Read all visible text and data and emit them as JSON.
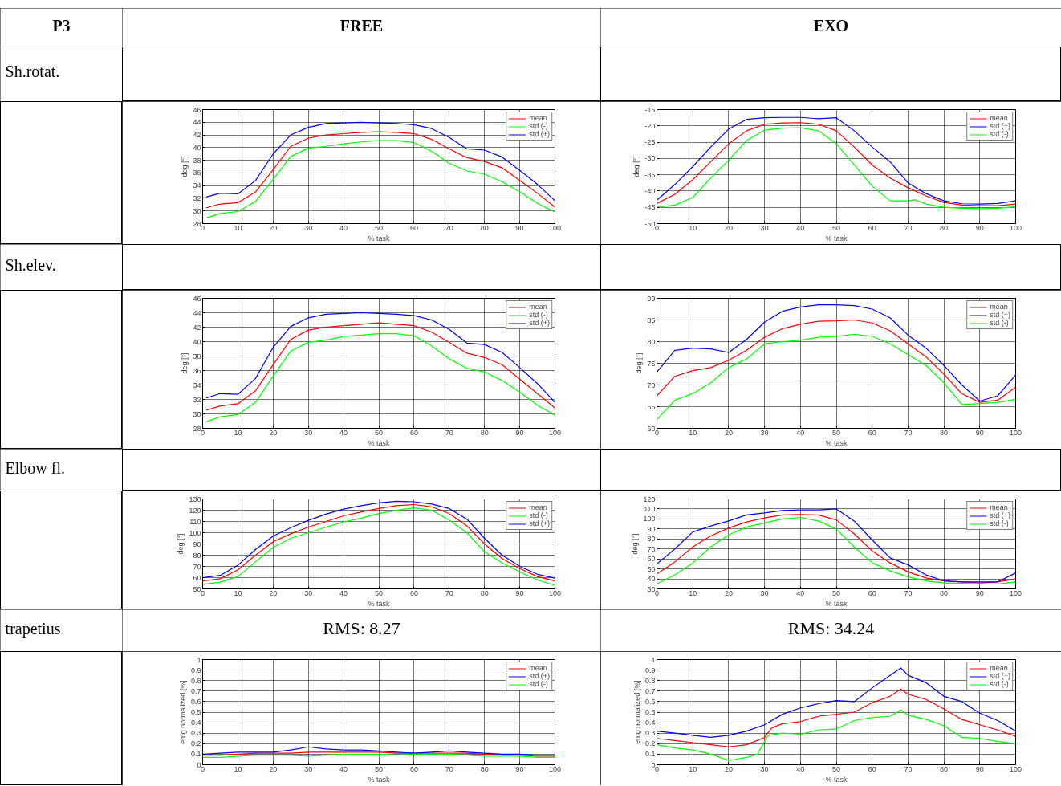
{
  "chart_data": [
    {
      "type": "other",
      "annotations": [
        "P3",
        "FREE",
        "EXO",
        "Sh.rotat.",
        "Sh.elev.",
        "Elbow fl.",
        "trapetius"
      ]
    },
    {
      "type": "line",
      "xlabel": "% task",
      "ylabel": "deg [°]",
      "xlim": [
        0,
        100
      ],
      "xticks": [
        0,
        10,
        20,
        30,
        40,
        50,
        60,
        70,
        80,
        90,
        100
      ],
      "ylim": [
        28,
        46
      ],
      "yticks": [
        28,
        30,
        32,
        34,
        36,
        38,
        40,
        42,
        44,
        46
      ],
      "grid": true,
      "legend": "top right",
      "series": [
        {
          "name": "mean",
          "color": "#ff0000",
          "x": [
            1,
            5,
            10,
            15,
            20,
            25,
            30,
            35,
            40,
            45,
            50,
            55,
            60,
            65,
            70,
            75,
            80,
            85,
            90,
            95,
            100
          ],
          "values": [
            30.5,
            31.1,
            31.3,
            33,
            36.5,
            40.2,
            41.5,
            42,
            42.2,
            42.4,
            42.5,
            42.4,
            42.2,
            41.3,
            39.8,
            38.4,
            37.8,
            36.8,
            34.8,
            32.8,
            30.6
          ]
        },
        {
          "name": "std (-)",
          "color": "#00ff00",
          "x": [
            1,
            5,
            10,
            15,
            20,
            25,
            30,
            35,
            40,
            45,
            50,
            55,
            60,
            65,
            70,
            75,
            80,
            85,
            90,
            95,
            100
          ],
          "values": [
            28.9,
            29.6,
            29.9,
            31.5,
            35,
            38.6,
            39.9,
            40.2,
            40.6,
            40.9,
            41.1,
            41.1,
            40.8,
            39.4,
            37.5,
            36.3,
            35.8,
            34.6,
            33,
            31.2,
            29.8
          ]
        },
        {
          "name": "std (+)",
          "color": "#0000ff",
          "x": [
            1,
            5,
            10,
            15,
            20,
            25,
            30,
            35,
            40,
            45,
            50,
            55,
            60,
            65,
            70,
            75,
            80,
            85,
            90,
            95,
            100
          ],
          "values": [
            32.2,
            32.8,
            32.7,
            34.8,
            39,
            42,
            43.2,
            43.8,
            43.9,
            44,
            43.9,
            43.8,
            43.6,
            43,
            41.6,
            39.8,
            39.6,
            38.5,
            36.4,
            34.2,
            31.6
          ]
        }
      ]
    },
    {
      "type": "line",
      "xlabel": "% task",
      "ylabel": "deg [°]",
      "xlim": [
        0,
        100
      ],
      "xticks": [
        0,
        10,
        20,
        30,
        40,
        50,
        60,
        70,
        80,
        90,
        100
      ],
      "ylim": [
        -50,
        -15
      ],
      "yticks": [
        -50,
        -45,
        -40,
        -35,
        -30,
        -25,
        -20,
        -15
      ],
      "grid": true,
      "legend": "top right",
      "series": [
        {
          "name": "mean",
          "color": "#ff0000",
          "x": [
            0,
            5,
            10,
            15,
            20,
            25,
            30,
            35,
            40,
            45,
            50,
            55,
            60,
            65,
            70,
            75,
            80,
            85,
            90,
            95,
            100
          ],
          "values": [
            -43.8,
            -41,
            -36.5,
            -31,
            -25.5,
            -21.5,
            -19.5,
            -19.1,
            -19,
            -19.5,
            -21.5,
            -26.5,
            -32,
            -36,
            -39,
            -41.5,
            -43.5,
            -44.3,
            -44.5,
            -44.5,
            -44
          ]
        },
        {
          "name": "std (+)",
          "color": "#0000ff",
          "x": [
            0,
            5,
            10,
            15,
            20,
            25,
            30,
            35,
            40,
            45,
            50,
            55,
            60,
            65,
            70,
            75,
            80,
            85,
            90,
            95,
            100
          ],
          "values": [
            -42.8,
            -38,
            -32.5,
            -26.5,
            -21,
            -18,
            -17.5,
            -17.4,
            -17.4,
            -17.8,
            -17.5,
            -21.5,
            -26.5,
            -31,
            -37.5,
            -40.8,
            -43,
            -43.9,
            -44,
            -43.8,
            -43
          ]
        },
        {
          "name": "std (-)",
          "color": "#00ff00",
          "x": [
            0,
            5,
            10,
            15,
            20,
            25,
            30,
            35,
            40,
            45,
            50,
            55,
            60,
            65,
            70,
            72,
            75,
            80,
            85,
            90,
            95,
            100
          ],
          "values": [
            -45,
            -44.3,
            -42,
            -36,
            -30.5,
            -24.5,
            -21.3,
            -20.7,
            -20.6,
            -21.5,
            -25.5,
            -32,
            -38.5,
            -43,
            -43,
            -42.7,
            -44,
            -45,
            -45.3,
            -45.4,
            -45.3,
            -44.8
          ]
        }
      ]
    },
    {
      "type": "line",
      "xlabel": "% task",
      "ylabel": "deg [°]",
      "xlim": [
        0,
        100
      ],
      "xticks": [
        0,
        10,
        20,
        30,
        40,
        50,
        60,
        70,
        80,
        90,
        100
      ],
      "ylim": [
        28,
        46
      ],
      "yticks": [
        28,
        30,
        32,
        34,
        36,
        38,
        40,
        42,
        44,
        46
      ],
      "grid": true,
      "legend": "top right",
      "series": [
        {
          "name": "mean",
          "color": "#ff0000",
          "x": [
            1,
            5,
            10,
            15,
            20,
            25,
            30,
            35,
            40,
            45,
            50,
            55,
            60,
            65,
            70,
            75,
            80,
            85,
            90,
            95,
            100
          ],
          "values": [
            30.5,
            31.1,
            31.4,
            33.2,
            36.8,
            40.3,
            41.6,
            42,
            42.2,
            42.4,
            42.6,
            42.4,
            42.2,
            41.3,
            39.9,
            38.4,
            37.8,
            36.8,
            34.8,
            32.8,
            30.8
          ]
        },
        {
          "name": "std (-)",
          "color": "#00ff00",
          "x": [
            1,
            5,
            10,
            15,
            20,
            25,
            30,
            35,
            40,
            45,
            50,
            55,
            60,
            65,
            70,
            75,
            80,
            85,
            90,
            95,
            100
          ],
          "values": [
            28.9,
            29.6,
            29.9,
            31.6,
            35.2,
            38.7,
            39.9,
            40.2,
            40.7,
            40.9,
            41.1,
            41.1,
            40.8,
            39.4,
            37.6,
            36.3,
            35.8,
            34.6,
            33,
            31.2,
            29.8
          ]
        },
        {
          "name": "std (+)",
          "color": "#0000ff",
          "x": [
            1,
            5,
            10,
            15,
            20,
            25,
            30,
            35,
            40,
            45,
            50,
            55,
            60,
            65,
            70,
            75,
            80,
            85,
            90,
            95,
            100
          ],
          "values": [
            32.2,
            32.8,
            32.7,
            34.9,
            39.2,
            42.1,
            43.3,
            43.8,
            43.9,
            44,
            43.9,
            43.8,
            43.6,
            43,
            41.7,
            39.8,
            39.6,
            38.5,
            36.4,
            34.2,
            31.6
          ]
        }
      ]
    },
    {
      "type": "line",
      "xlabel": "% task",
      "ylabel": "deg [°]",
      "xlim": [
        0,
        100
      ],
      "xticks": [
        0,
        10,
        20,
        30,
        40,
        50,
        60,
        70,
        80,
        90,
        100
      ],
      "ylim": [
        60,
        90
      ],
      "yticks": [
        60,
        65,
        70,
        75,
        80,
        85,
        90
      ],
      "grid": true,
      "legend": "top right",
      "series": [
        {
          "name": "mean",
          "color": "#ff0000",
          "x": [
            0,
            5,
            10,
            15,
            20,
            25,
            30,
            35,
            40,
            45,
            50,
            55,
            60,
            65,
            70,
            75,
            80,
            85,
            90,
            95,
            100
          ],
          "values": [
            67.5,
            72,
            73.3,
            74,
            75.7,
            78,
            81,
            83,
            84,
            84.7,
            84.8,
            85,
            84.3,
            82.5,
            79.5,
            76.5,
            72.5,
            68,
            66,
            66.5,
            69.5
          ]
        },
        {
          "name": "std (+)",
          "color": "#0000ff",
          "x": [
            0,
            5,
            10,
            15,
            20,
            25,
            30,
            35,
            40,
            45,
            50,
            55,
            60,
            65,
            70,
            75,
            80,
            85,
            90,
            95,
            100
          ],
          "values": [
            73,
            78,
            78.5,
            78.3,
            77.5,
            80.5,
            84.5,
            87,
            88,
            88.5,
            88.5,
            88.3,
            87.5,
            85.5,
            81.5,
            78.5,
            74.5,
            70,
            66.3,
            67.5,
            72.3
          ]
        },
        {
          "name": "std (-)",
          "color": "#00ff00",
          "x": [
            0,
            5,
            10,
            15,
            20,
            25,
            30,
            35,
            40,
            45,
            50,
            55,
            60,
            65,
            70,
            75,
            80,
            85,
            90,
            95,
            100
          ],
          "values": [
            62,
            66.5,
            68,
            70.5,
            74,
            76,
            79.5,
            80,
            80.3,
            81,
            81.2,
            81.7,
            81.2,
            79.5,
            77,
            74.5,
            70.5,
            65.5,
            65.7,
            66,
            66.7
          ]
        }
      ]
    },
    {
      "type": "line",
      "xlabel": "% task",
      "ylabel": "deg [°]",
      "xlim": [
        0,
        100
      ],
      "xticks": [
        0,
        10,
        20,
        30,
        40,
        50,
        60,
        70,
        80,
        90,
        100
      ],
      "ylim": [
        50,
        130
      ],
      "yticks": [
        50,
        60,
        70,
        80,
        90,
        100,
        110,
        120,
        130
      ],
      "grid": true,
      "legend": "top right",
      "series": [
        {
          "name": "mean",
          "color": "#ff0000",
          "x": [
            0,
            5,
            10,
            15,
            20,
            25,
            30,
            35,
            40,
            45,
            50,
            55,
            60,
            65,
            70,
            75,
            80,
            85,
            90,
            95,
            100
          ],
          "values": [
            57,
            59,
            67,
            80,
            92,
            99,
            105,
            110,
            115,
            118.5,
            121.5,
            124,
            125,
            123,
            117,
            106,
            90,
            77,
            68,
            61,
            57
          ]
        },
        {
          "name": "std (-)",
          "color": "#00ff00",
          "x": [
            0,
            5,
            10,
            15,
            20,
            25,
            30,
            35,
            40,
            45,
            50,
            55,
            60,
            65,
            70,
            75,
            80,
            85,
            90,
            95,
            100
          ],
          "values": [
            54,
            56,
            61,
            74,
            87,
            95,
            100,
            105,
            109.5,
            113,
            117,
            120,
            122,
            120,
            111,
            100,
            83,
            73,
            65,
            58,
            53
          ]
        },
        {
          "name": "std (+)",
          "color": "#0000ff",
          "x": [
            0,
            5,
            10,
            15,
            20,
            25,
            30,
            35,
            40,
            45,
            50,
            55,
            60,
            65,
            70,
            75,
            80,
            85,
            90,
            95,
            100
          ],
          "values": [
            60,
            62,
            71,
            85,
            97,
            104.5,
            111,
            116.5,
            121,
            124,
            126.5,
            128,
            127.5,
            125.5,
            121.5,
            112,
            95,
            80,
            70,
            63,
            59.5
          ]
        }
      ]
    },
    {
      "type": "line",
      "xlabel": "% task",
      "ylabel": "deg [°]",
      "xlim": [
        0,
        100
      ],
      "xticks": [
        0,
        10,
        20,
        30,
        40,
        50,
        60,
        70,
        80,
        90,
        100
      ],
      "ylim": [
        30,
        120
      ],
      "yticks": [
        30,
        40,
        50,
        60,
        70,
        80,
        90,
        100,
        110,
        120
      ],
      "grid": true,
      "legend": "top right",
      "series": [
        {
          "name": "mean",
          "color": "#ff0000",
          "x": [
            0,
            5,
            10,
            15,
            20,
            25,
            30,
            35,
            40,
            45,
            50,
            55,
            60,
            65,
            70,
            75,
            80,
            85,
            90,
            95,
            100
          ],
          "values": [
            45,
            57,
            72,
            83,
            91,
            97,
            101,
            104,
            104.5,
            104,
            99,
            85,
            68,
            56,
            47,
            41,
            38,
            37,
            36,
            37,
            40
          ]
        },
        {
          "name": "std (+)",
          "color": "#0000ff",
          "x": [
            0,
            5,
            10,
            15,
            20,
            25,
            30,
            35,
            40,
            45,
            50,
            55,
            60,
            65,
            70,
            75,
            80,
            85,
            90,
            95,
            100
          ],
          "values": [
            55,
            70,
            87,
            93,
            98,
            104,
            106,
            108.5,
            109,
            109,
            110,
            98,
            79,
            61,
            54,
            44,
            38,
            37,
            37,
            37,
            46
          ]
        },
        {
          "name": "std (-)",
          "color": "#00ff00",
          "x": [
            0,
            5,
            10,
            15,
            20,
            25,
            30,
            35,
            40,
            45,
            50,
            55,
            60,
            65,
            70,
            75,
            80,
            85,
            90,
            95,
            100
          ],
          "values": [
            35,
            44,
            56,
            72,
            84,
            92,
            96,
            100,
            101.5,
            98,
            90,
            72,
            56,
            48,
            42,
            38,
            36,
            35.5,
            35,
            35,
            37
          ]
        }
      ]
    },
    {
      "type": "line",
      "xlabel": "% task",
      "ylabel": "emg normalized [%]",
      "annotations": [
        "RMS: 8.27"
      ],
      "xlim": [
        0,
        100
      ],
      "xticks": [
        0,
        10,
        20,
        30,
        40,
        50,
        60,
        70,
        80,
        90,
        100
      ],
      "ylim": [
        0,
        1
      ],
      "yticks": [
        0,
        0.1,
        0.2,
        0.3,
        0.4,
        0.5,
        0.6,
        0.7,
        0.8,
        0.9,
        1
      ],
      "grid": true,
      "legend": "top right",
      "series": [
        {
          "name": "mean",
          "color": "#ff0000",
          "x": [
            0,
            5,
            10,
            15,
            20,
            25,
            30,
            35,
            40,
            45,
            50,
            55,
            60,
            65,
            70,
            75,
            80,
            85,
            90,
            95,
            100
          ],
          "values": [
            0.09,
            0.09,
            0.1,
            0.11,
            0.11,
            0.11,
            0.12,
            0.12,
            0.12,
            0.12,
            0.12,
            0.11,
            0.11,
            0.11,
            0.11,
            0.11,
            0.1,
            0.09,
            0.09,
            0.08,
            0.08
          ]
        },
        {
          "name": "std (+)",
          "color": "#0000ff",
          "x": [
            0,
            5,
            10,
            15,
            20,
            25,
            30,
            35,
            40,
            45,
            50,
            55,
            60,
            65,
            70,
            75,
            80,
            85,
            90,
            95,
            100
          ],
          "values": [
            0.1,
            0.11,
            0.12,
            0.12,
            0.12,
            0.14,
            0.17,
            0.15,
            0.14,
            0.14,
            0.13,
            0.12,
            0.11,
            0.12,
            0.13,
            0.12,
            0.11,
            0.1,
            0.1,
            0.09,
            0.09
          ]
        },
        {
          "name": "std (-)",
          "color": "#00ff00",
          "x": [
            0,
            5,
            10,
            15,
            20,
            25,
            30,
            35,
            40,
            45,
            50,
            55,
            60,
            65,
            70,
            75,
            80,
            85,
            90,
            95,
            100
          ],
          "values": [
            0.07,
            0.07,
            0.08,
            0.09,
            0.09,
            0.09,
            0.08,
            0.09,
            0.1,
            0.1,
            0.1,
            0.09,
            0.1,
            0.1,
            0.1,
            0.09,
            0.08,
            0.08,
            0.08,
            0.07,
            0.07
          ]
        }
      ]
    },
    {
      "type": "line",
      "xlabel": "% task",
      "ylabel": "emg normalized [%]",
      "annotations": [
        "RMS: 34.24"
      ],
      "xlim": [
        0,
        100
      ],
      "xticks": [
        0,
        10,
        20,
        30,
        40,
        50,
        60,
        70,
        80,
        90,
        100
      ],
      "ylim": [
        0,
        1
      ],
      "yticks": [
        0,
        0.1,
        0.2,
        0.3,
        0.4,
        0.5,
        0.6,
        0.7,
        0.8,
        0.9,
        1
      ],
      "grid": true,
      "legend": "top right",
      "series": [
        {
          "name": "mean",
          "color": "#ff0000",
          "x": [
            0,
            5,
            10,
            15,
            20,
            25,
            30,
            32,
            35,
            40,
            45,
            50,
            55,
            60,
            65,
            68,
            70,
            75,
            80,
            85,
            90,
            95,
            100
          ],
          "values": [
            0.25,
            0.23,
            0.21,
            0.19,
            0.17,
            0.19,
            0.26,
            0.35,
            0.39,
            0.41,
            0.46,
            0.48,
            0.5,
            0.59,
            0.65,
            0.72,
            0.67,
            0.62,
            0.53,
            0.43,
            0.38,
            0.33,
            0.27
          ]
        },
        {
          "name": "std (+)",
          "color": "#0000ff",
          "x": [
            0,
            5,
            10,
            15,
            20,
            25,
            30,
            35,
            40,
            45,
            50,
            55,
            60,
            65,
            68,
            70,
            75,
            80,
            85,
            90,
            95,
            100
          ],
          "values": [
            0.32,
            0.3,
            0.28,
            0.26,
            0.28,
            0.32,
            0.38,
            0.48,
            0.54,
            0.58,
            0.61,
            0.6,
            0.73,
            0.85,
            0.92,
            0.85,
            0.78,
            0.65,
            0.6,
            0.49,
            0.42,
            0.32
          ]
        },
        {
          "name": "std (-)",
          "color": "#00ff00",
          "x": [
            0,
            5,
            10,
            15,
            20,
            25,
            28,
            31,
            35,
            40,
            45,
            50,
            55,
            60,
            65,
            68,
            70,
            75,
            80,
            85,
            90,
            95,
            100
          ],
          "values": [
            0.19,
            0.16,
            0.14,
            0.1,
            0.04,
            0.07,
            0.1,
            0.28,
            0.3,
            0.29,
            0.33,
            0.34,
            0.42,
            0.45,
            0.46,
            0.52,
            0.47,
            0.43,
            0.37,
            0.26,
            0.25,
            0.22,
            0.2
          ]
        }
      ]
    }
  ]
}
